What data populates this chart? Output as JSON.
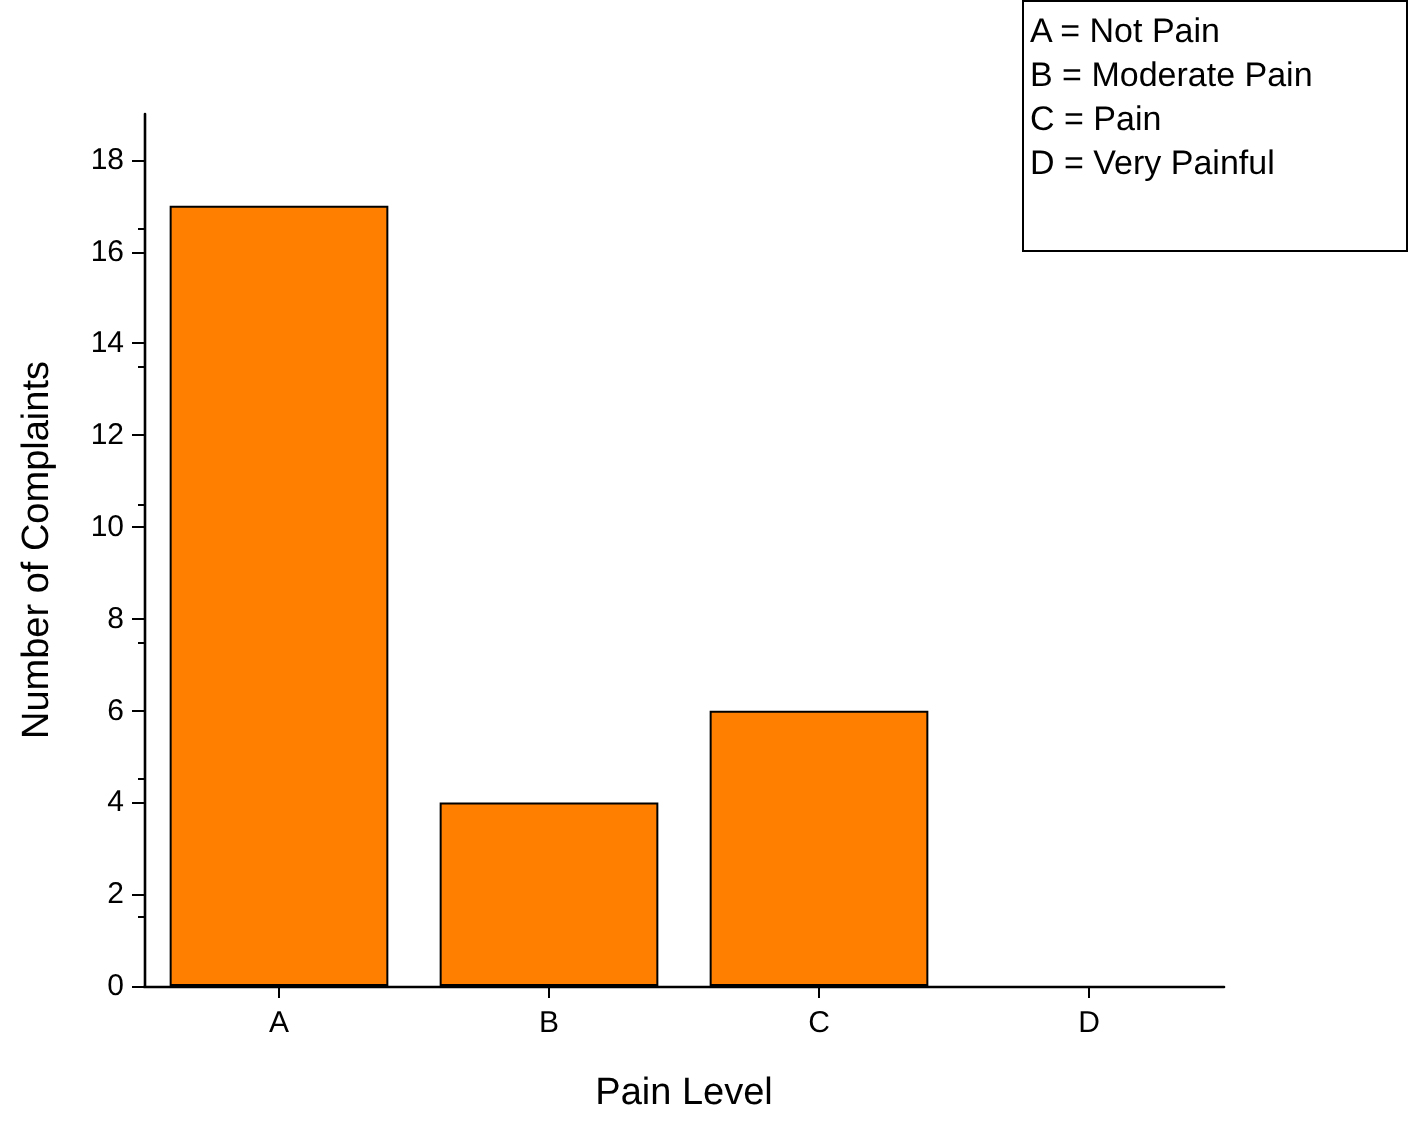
{
  "chart_data": {
    "type": "bar",
    "xlabel": "Pain Level",
    "ylabel": "Number of Complaints",
    "categories": [
      "A",
      "B",
      "C",
      "D"
    ],
    "values": [
      17,
      4,
      6,
      0
    ],
    "color": "#ff8000",
    "ylim": [
      0,
      19
    ],
    "yticks": [
      0,
      2,
      4,
      6,
      8,
      10,
      12,
      14,
      16,
      18
    ],
    "grid": false,
    "annotations": [
      "A = Not Pain",
      "B = Moderate Pain",
      "C = Pain",
      "D = Very Painful"
    ]
  }
}
